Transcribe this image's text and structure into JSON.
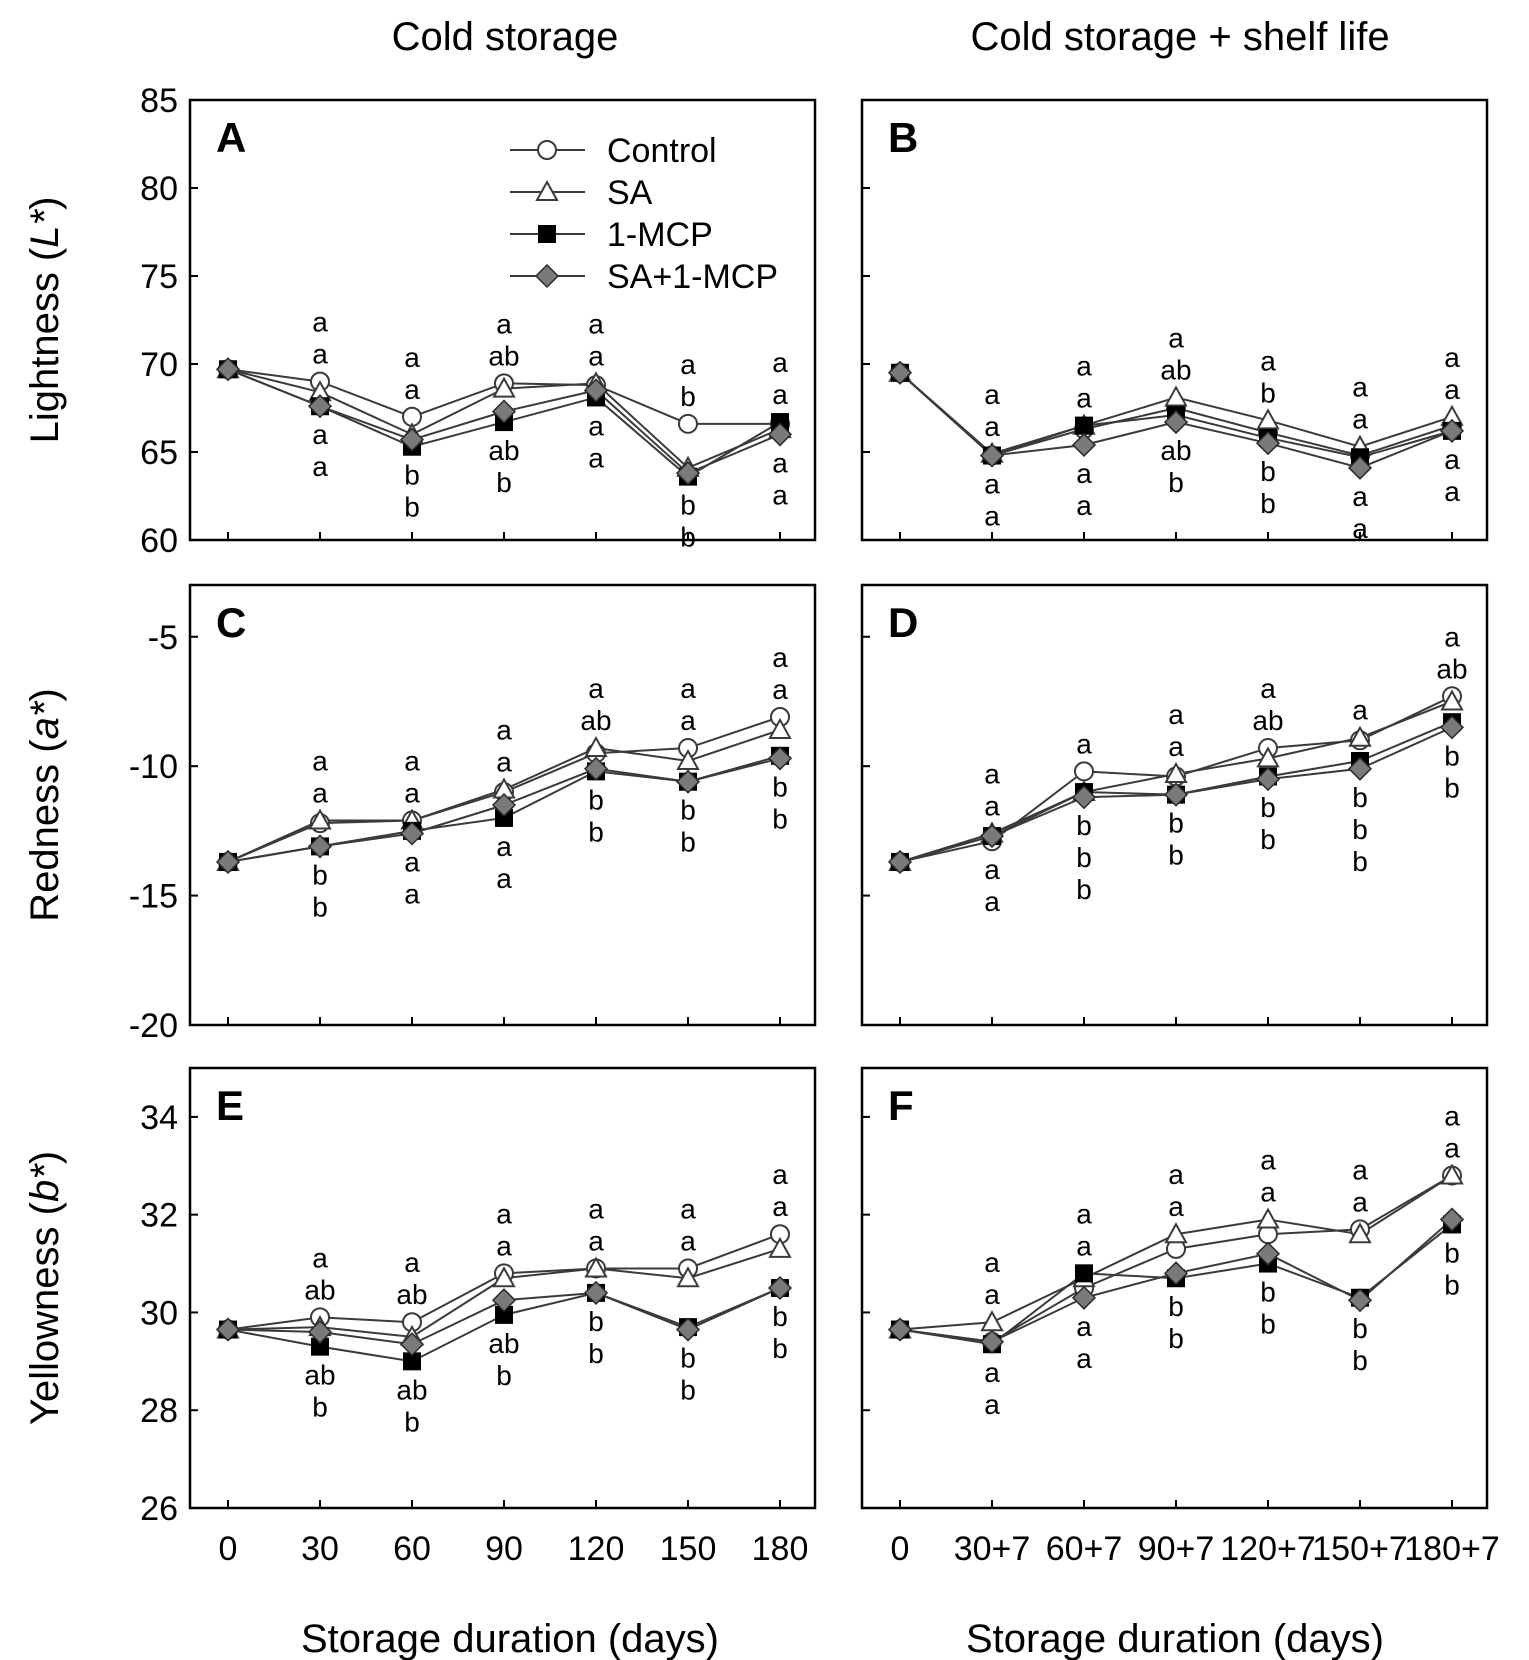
{
  "column_titles": [
    "Cold storage",
    "Cold storage + shelf life"
  ],
  "row_ylabels": [
    "Lightness (",
    "L*",
    ")",
    "Redness (",
    "a*",
    ")",
    "Yellowness (",
    "b*",
    ")"
  ],
  "ylabels": [
    {
      "pre": "Lightness (",
      "var": "L*",
      "post": ")"
    },
    {
      "pre": "Redness (",
      "var": "a*",
      "post": ")"
    },
    {
      "pre": "Yellowness (",
      "var": "b*",
      "post": ")"
    }
  ],
  "xlabel": "Storage duration (days)",
  "legend": [
    {
      "name": "Control",
      "marker": "circle-open"
    },
    {
      "name": "SA",
      "marker": "triangle-open"
    },
    {
      "name": "1-MCP",
      "marker": "square-filled"
    },
    {
      "name": "SA+1-MCP",
      "marker": "diamond-gray"
    }
  ],
  "colors": {
    "axis": "#000000",
    "line": "#3a3a3a",
    "diamond": "#7a7a7a",
    "square": "#000000",
    "open": "#ffffff"
  },
  "chart_data": [
    {
      "panel": "A",
      "type": "line",
      "x": [
        "0",
        "30",
        "60",
        "90",
        "120",
        "150",
        "180"
      ],
      "ylim": [
        60,
        85
      ],
      "yticks": [
        60,
        65,
        70,
        75,
        80,
        85
      ],
      "series": [
        {
          "name": "Control",
          "values": [
            69.7,
            69.0,
            67.0,
            68.9,
            68.8,
            66.6,
            66.6
          ]
        },
        {
          "name": "SA",
          "values": [
            69.7,
            68.4,
            66.0,
            68.6,
            68.9,
            64.1,
            66.3
          ]
        },
        {
          "name": "1-MCP",
          "values": [
            69.7,
            67.6,
            65.3,
            66.7,
            68.1,
            63.6,
            66.7
          ]
        },
        {
          "name": "SA+1-MCP",
          "values": [
            69.7,
            67.6,
            65.7,
            67.3,
            68.5,
            63.8,
            66.0
          ]
        }
      ],
      "letters": [
        {
          "xi": 1,
          "above": [
            "a",
            "a"
          ],
          "below": [
            "a",
            "a"
          ]
        },
        {
          "xi": 2,
          "above": [
            "a",
            "a"
          ],
          "below": [
            "b",
            "b"
          ]
        },
        {
          "xi": 3,
          "above": [
            "a",
            "ab"
          ],
          "below": [
            "ab",
            "b"
          ]
        },
        {
          "xi": 4,
          "above": [
            "a",
            "a"
          ],
          "below": [
            "a",
            "a"
          ]
        },
        {
          "xi": 5,
          "above": [
            "a",
            "b"
          ],
          "below": [
            "b",
            "b"
          ]
        },
        {
          "xi": 6,
          "above": [
            "a",
            "a"
          ],
          "below": [
            "a",
            "a"
          ]
        }
      ]
    },
    {
      "panel": "B",
      "type": "line",
      "x": [
        "0",
        "30+7",
        "60+7",
        "90+7",
        "120+7",
        "150+7",
        "180+7"
      ],
      "ylim": [
        60,
        85
      ],
      "yticks": [
        60,
        65,
        70,
        75,
        80,
        85
      ],
      "series": [
        {
          "name": "Control",
          "values": [
            69.5,
            64.8,
            66.3,
            67.5,
            66.1,
            64.8,
            66.5
          ]
        },
        {
          "name": "SA",
          "values": [
            69.5,
            64.9,
            66.5,
            68.1,
            66.8,
            65.3,
            67.0
          ]
        },
        {
          "name": "1-MCP",
          "values": [
            69.5,
            64.8,
            66.5,
            67.1,
            65.8,
            64.7,
            66.2
          ]
        },
        {
          "name": "SA+1-MCP",
          "values": [
            69.5,
            64.8,
            65.4,
            66.7,
            65.5,
            64.1,
            66.2
          ]
        }
      ],
      "letters": [
        {
          "xi": 1,
          "above": [
            "a",
            "a"
          ],
          "below": [
            "a",
            "a"
          ]
        },
        {
          "xi": 2,
          "above": [
            "a",
            "a"
          ],
          "below": [
            "a",
            "a"
          ]
        },
        {
          "xi": 3,
          "above": [
            "a",
            "ab"
          ],
          "below": [
            "ab",
            "b"
          ]
        },
        {
          "xi": 4,
          "above": [
            "a",
            "b"
          ],
          "below": [
            "b",
            "b"
          ]
        },
        {
          "xi": 5,
          "above": [
            "a",
            "a"
          ],
          "below": [
            "a",
            "a"
          ]
        },
        {
          "xi": 6,
          "above": [
            "a",
            "a"
          ],
          "below": [
            "a",
            "a"
          ]
        }
      ]
    },
    {
      "panel": "C",
      "type": "line",
      "x": [
        "0",
        "30",
        "60",
        "90",
        "120",
        "150",
        "180"
      ],
      "ylim": [
        -20,
        -3
      ],
      "yticks": [
        -20,
        -15,
        -10,
        -5
      ],
      "series": [
        {
          "name": "Control",
          "values": [
            -13.7,
            -12.2,
            -12.1,
            -11.0,
            -9.5,
            -9.3,
            -8.1
          ]
        },
        {
          "name": "SA",
          "values": [
            -13.7,
            -12.1,
            -12.1,
            -10.9,
            -9.3,
            -9.8,
            -8.6
          ]
        },
        {
          "name": "1-MCP",
          "values": [
            -13.7,
            -13.1,
            -12.5,
            -12.0,
            -10.2,
            -10.6,
            -9.6
          ]
        },
        {
          "name": "SA+1-MCP",
          "values": [
            -13.7,
            -13.1,
            -12.6,
            -11.5,
            -10.1,
            -10.6,
            -9.7
          ]
        }
      ],
      "letters": [
        {
          "xi": 1,
          "above": [
            "a",
            "a"
          ],
          "below": [
            "b",
            "b"
          ]
        },
        {
          "xi": 2,
          "above": [
            "a",
            "a"
          ],
          "below": [
            "a",
            "a"
          ]
        },
        {
          "xi": 3,
          "above": [
            "a",
            "a"
          ],
          "below": [
            "a",
            "a"
          ]
        },
        {
          "xi": 4,
          "above": [
            "a",
            "ab"
          ],
          "below": [
            "b",
            "b"
          ]
        },
        {
          "xi": 5,
          "above": [
            "a",
            "a"
          ],
          "below": [
            "b",
            "b"
          ]
        },
        {
          "xi": 6,
          "above": [
            "a",
            "a"
          ],
          "below": [
            "b",
            "b"
          ]
        }
      ]
    },
    {
      "panel": "D",
      "type": "line",
      "x": [
        "0",
        "30+7",
        "60+7",
        "90+7",
        "120+7",
        "150+7",
        "180+7"
      ],
      "ylim": [
        -20,
        -3
      ],
      "yticks": [
        -20,
        -15,
        -10,
        -5
      ],
      "series": [
        {
          "name": "Control",
          "values": [
            -13.7,
            -12.9,
            -10.2,
            -10.4,
            -9.3,
            -9.0,
            -7.3
          ]
        },
        {
          "name": "SA",
          "values": [
            -13.7,
            -12.6,
            -11.0,
            -10.3,
            -9.7,
            -8.9,
            -7.5
          ]
        },
        {
          "name": "1-MCP",
          "values": [
            -13.7,
            -12.7,
            -11.0,
            -11.1,
            -10.4,
            -9.8,
            -8.3
          ]
        },
        {
          "name": "SA+1-MCP",
          "values": [
            -13.7,
            -12.7,
            -11.2,
            -11.1,
            -10.5,
            -10.1,
            -8.5
          ]
        }
      ],
      "letters": [
        {
          "xi": 1,
          "above": [
            "a",
            "a"
          ],
          "below": [
            "a",
            "a"
          ]
        },
        {
          "xi": 2,
          "above": [
            "a"
          ],
          "below": [
            "b",
            "b",
            "b"
          ]
        },
        {
          "xi": 3,
          "above": [
            "a",
            "a"
          ],
          "below": [
            "b",
            "b"
          ]
        },
        {
          "xi": 4,
          "above": [
            "a",
            "ab"
          ],
          "below": [
            "b",
            "b"
          ]
        },
        {
          "xi": 5,
          "above": [
            "a"
          ],
          "below": [
            "b",
            "b",
            "b"
          ]
        },
        {
          "xi": 6,
          "above": [
            "a",
            "ab"
          ],
          "below": [
            "b",
            "b"
          ]
        }
      ]
    },
    {
      "panel": "E",
      "type": "line",
      "x": [
        "0",
        "30",
        "60",
        "90",
        "120",
        "150",
        "180"
      ],
      "ylim": [
        26,
        35
      ],
      "yticks": [
        26,
        28,
        30,
        32,
        34
      ],
      "series": [
        {
          "name": "Control",
          "values": [
            29.65,
            29.9,
            29.8,
            30.8,
            30.9,
            30.9,
            31.6
          ]
        },
        {
          "name": "SA",
          "values": [
            29.65,
            29.7,
            29.5,
            30.7,
            30.9,
            30.7,
            31.3
          ]
        },
        {
          "name": "1-MCP",
          "values": [
            29.65,
            29.3,
            29.0,
            29.95,
            30.4,
            29.7,
            30.5
          ]
        },
        {
          "name": "SA+1-MCP",
          "values": [
            29.65,
            29.6,
            29.35,
            30.25,
            30.4,
            29.65,
            30.5
          ]
        }
      ],
      "letters": [
        {
          "xi": 1,
          "above": [
            "a",
            "ab"
          ],
          "below": [
            "ab",
            "b"
          ]
        },
        {
          "xi": 2,
          "above": [
            "a",
            "ab"
          ],
          "below": [
            "ab",
            "b"
          ]
        },
        {
          "xi": 3,
          "above": [
            "a",
            "a"
          ],
          "below": [
            "ab",
            "b"
          ]
        },
        {
          "xi": 4,
          "above": [
            "a",
            "a"
          ],
          "below": [
            "b",
            "b"
          ]
        },
        {
          "xi": 5,
          "above": [
            "a",
            "a"
          ],
          "below": [
            "b",
            "b"
          ]
        },
        {
          "xi": 6,
          "above": [
            "a",
            "a"
          ],
          "below": [
            "b",
            "b"
          ]
        }
      ]
    },
    {
      "panel": "F",
      "type": "line",
      "x": [
        "0",
        "30+7",
        "60+7",
        "90+7",
        "120+7",
        "150+7",
        "180+7"
      ],
      "ylim": [
        26,
        35
      ],
      "yticks": [
        26,
        28,
        30,
        32,
        34
      ],
      "series": [
        {
          "name": "Control",
          "values": [
            29.65,
            29.4,
            30.5,
            31.3,
            31.6,
            31.7,
            32.8
          ]
        },
        {
          "name": "SA",
          "values": [
            29.65,
            29.8,
            30.7,
            31.6,
            31.9,
            31.6,
            32.8
          ]
        },
        {
          "name": "1-MCP",
          "values": [
            29.65,
            29.35,
            30.8,
            30.7,
            31.0,
            30.3,
            31.8
          ]
        },
        {
          "name": "SA+1-MCP",
          "values": [
            29.65,
            29.4,
            30.3,
            30.8,
            31.2,
            30.25,
            31.9
          ]
        }
      ],
      "letters": [
        {
          "xi": 1,
          "above": [
            "a",
            "a"
          ],
          "below": [
            "a",
            "a"
          ]
        },
        {
          "xi": 2,
          "above": [
            "a",
            "a"
          ],
          "below": [
            "a",
            "a"
          ]
        },
        {
          "xi": 3,
          "above": [
            "a",
            "a"
          ],
          "below": [
            "b",
            "b"
          ]
        },
        {
          "xi": 4,
          "above": [
            "a",
            "a"
          ],
          "below": [
            "b",
            "b"
          ]
        },
        {
          "xi": 5,
          "above": [
            "a",
            "a"
          ],
          "below": [
            "b",
            "b"
          ]
        },
        {
          "xi": 6,
          "above": [
            "a",
            "a"
          ],
          "below": [
            "b",
            "b"
          ]
        }
      ]
    }
  ]
}
